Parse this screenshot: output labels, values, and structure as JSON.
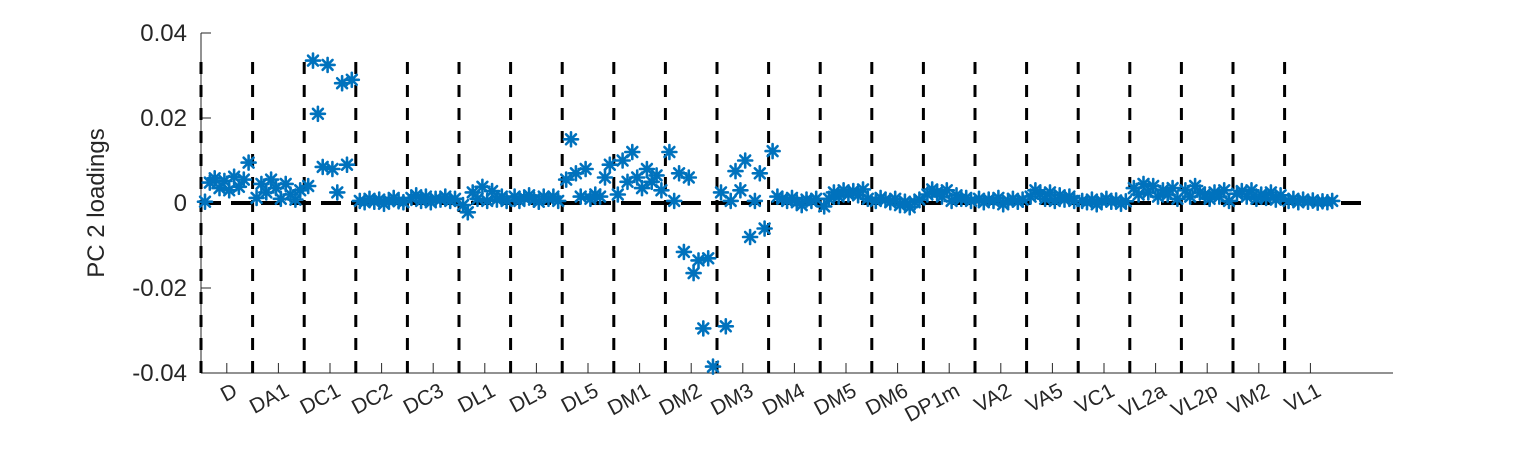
{
  "chart_data": {
    "type": "scatter",
    "ylabel": "PC 2 loadings",
    "ylim": [
      -0.04,
      0.04
    ],
    "yticks": [
      "0.04",
      "0.02",
      "0",
      "-0.02",
      "-0.04"
    ],
    "categories": [
      "D",
      "DA1",
      "DC1",
      "DC2",
      "DC3",
      "DL1",
      "DL3",
      "DL5",
      "DM1",
      "DM2",
      "DM3",
      "DM4",
      "DM5",
      "DM6",
      "DP1m",
      "VA2",
      "VA5",
      "VC1",
      "VL2a",
      "VL2p",
      "VM2",
      "VL1"
    ],
    "group_size": 10,
    "marker_color": "#0072BD",
    "series": [
      {
        "values": [
          0.0003,
          0.0048,
          0.0058,
          0.0035,
          0.0052,
          0.003,
          0.0062,
          0.0038,
          0.0055,
          0.0095,
          0.0012,
          0.0045,
          0.0025,
          0.0055,
          0.0035,
          0.001,
          0.0045,
          0.002,
          0.0008,
          0.003,
          0.004,
          0.0335,
          0.021,
          0.0085,
          0.0325,
          0.008,
          0.0025,
          0.0282,
          0.009,
          0.029,
          0.0005,
          0.0002,
          0.001,
          0.0003,
          0.0008,
          -0.0002,
          0.0005,
          0.0012,
          0.0004,
          0.0002,
          0.0012,
          0.0018,
          0.0005,
          0.0015,
          0.0002,
          0.001,
          0.0008,
          0.0015,
          0.0005,
          0.001,
          -0.0005,
          -0.0022,
          0.0025,
          0.001,
          0.0038,
          0.0005,
          0.0028,
          0.0008,
          0.0015,
          0.0005,
          0.0015,
          0.0005,
          0.0012,
          0.0018,
          0.0008,
          0.0003,
          0.0015,
          0.001,
          0.0015,
          0.0005,
          0.0055,
          0.015,
          0.007,
          0.0015,
          0.008,
          0.001,
          0.002,
          0.0015,
          0.006,
          0.009,
          0.002,
          0.01,
          0.005,
          0.012,
          0.006,
          0.0035,
          0.008,
          0.005,
          0.0065,
          0.003,
          0.012,
          0.0005,
          0.007,
          -0.0115,
          0.006,
          -0.0165,
          -0.0135,
          -0.0295,
          -0.013,
          -0.0385,
          0.0025,
          -0.029,
          0.0005,
          0.0075,
          0.003,
          0.01,
          -0.008,
          0.0005,
          0.007,
          -0.006,
          0.0122,
          0.0015,
          0.001,
          0.0005,
          0.0012,
          0.0002,
          -0.0005,
          0.0008,
          0.0005,
          0.001,
          -0.0008,
          0.001,
          0.0025,
          0.0015,
          0.003,
          0.002,
          0.0028,
          0.0018,
          0.0032,
          0.001,
          0.0005,
          0.0012,
          0.0008,
          0.0002,
          0.001,
          -0.0005,
          0.0003,
          -0.001,
          0.0002,
          0.0008,
          0.002,
          0.0032,
          0.0025,
          0.0015,
          0.003,
          0.0005,
          0.0018,
          0.001,
          0.0012,
          0.0005,
          0.001,
          0.0002,
          0.0008,
          0.0005,
          0.0012,
          -0.0003,
          0.0005,
          0.001,
          0.0003,
          0.0008,
          0.0015,
          0.003,
          0.0022,
          0.001,
          0.0025,
          0.0005,
          0.0018,
          0.0008,
          0.0015,
          0.0005,
          0.0005,
          0.0002,
          0.0008,
          -0.0003,
          0.0005,
          0.001,
          0.0003,
          0.0006,
          -0.0002,
          0.0004,
          0.0035,
          0.002,
          0.0045,
          0.0025,
          0.004,
          0.0015,
          0.003,
          0.002,
          0.0035,
          0.001,
          0.003,
          0.0015,
          0.004,
          0.0025,
          0.002,
          0.001,
          0.0025,
          0.0015,
          0.003,
          0.0005,
          0.0022,
          0.0028,
          0.0015,
          0.003,
          0.001,
          0.002,
          0.0012,
          0.0025,
          0.0008,
          0.0018,
          0.0005,
          0.001,
          0.0002,
          0.0008,
          0.0003,
          0.0006,
          0.0001,
          0.0004,
          0.0002,
          0.0005
        ]
      }
    ]
  }
}
